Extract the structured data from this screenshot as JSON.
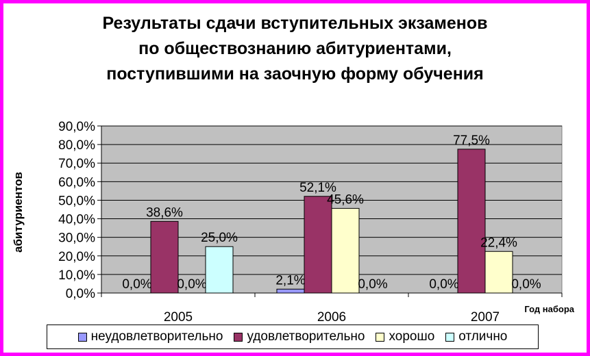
{
  "title_lines": [
    "Результаты сдачи вступительных экзаменов",
    "по обществознанию абитуриентами,",
    "поступившими на заочную форму обучения"
  ],
  "chart_data": {
    "type": "bar",
    "categories": [
      "2005",
      "2006",
      "2007"
    ],
    "series": [
      {
        "name": "неудовлетворительно",
        "values": [
          0.0,
          2.1,
          0.0
        ],
        "color": "#9999ff"
      },
      {
        "name": "удовлетворительно",
        "values": [
          38.6,
          52.1,
          77.5
        ],
        "color": "#993366"
      },
      {
        "name": "хорошо",
        "values": [
          0.0,
          45.6,
          22.4
        ],
        "color": "#ffffcc"
      },
      {
        "name": "отлично",
        "values": [
          25.0,
          0.0,
          0.0
        ],
        "color": "#ccffff"
      }
    ],
    "data_labels": [
      [
        "0,0%",
        "38,6%",
        "0,0%",
        "25,0%"
      ],
      [
        "2,1%",
        "52,1%",
        "45,6%",
        "0,0%"
      ],
      [
        "0,0%",
        "77,5%",
        "22,4%",
        "0,0%"
      ]
    ],
    "ylim": [
      0,
      90
    ],
    "yticks": [
      "0,0%",
      "10,0%",
      "20,0%",
      "30,0%",
      "40,0%",
      "50,0%",
      "60,0%",
      "70,0%",
      "80,0%",
      "90,0%"
    ],
    "xlabel": "Год набора",
    "ylabel": "абитуриентов",
    "plot_background": "#c0c0c0",
    "grid": true,
    "legend_position": "bottom"
  }
}
